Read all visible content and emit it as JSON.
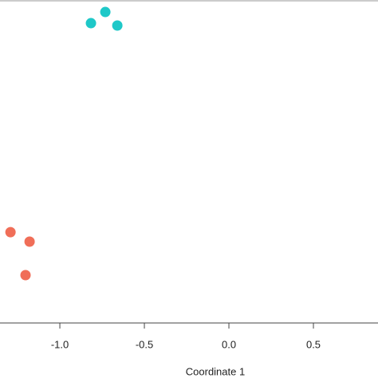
{
  "chart_data": {
    "type": "scatter",
    "x_label": "Coordinate 1",
    "xlim": [
      -1.354,
      0.882
    ],
    "ylim": [
      -1.0,
      0.91
    ],
    "xticks": [
      {
        "value": -1.0,
        "label": "-1.0"
      },
      {
        "value": -0.5,
        "label": "-0.5"
      },
      {
        "value": 0.0,
        "label": "0.0"
      },
      {
        "value": 0.5,
        "label": "0.5"
      }
    ],
    "series": [
      {
        "color": "#1ec8c8",
        "x": [
          -0.816,
          -0.731,
          -0.66
        ],
        "values": [
          0.773,
          0.839,
          0.759
        ]
      },
      {
        "color": "#f06e58",
        "x": [
          -1.292,
          -1.179,
          -1.203
        ],
        "values": [
          -0.463,
          -0.519,
          -0.717
        ]
      }
    ]
  }
}
